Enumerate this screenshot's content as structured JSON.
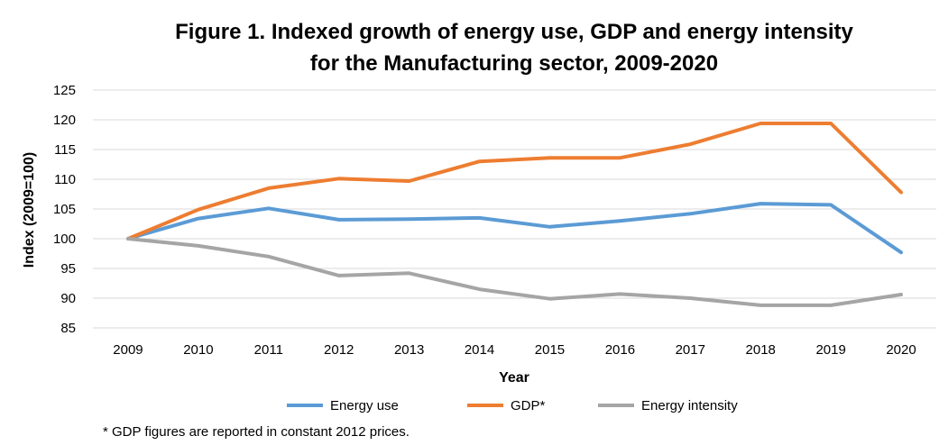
{
  "chart_data": {
    "type": "line",
    "title_line1": "Figure 1. Indexed growth of energy use, GDP and energy intensity",
    "title_line2": "for the Manufacturing sector, 2009-2020",
    "xlabel": "Year",
    "ylabel": "Index (2009=100)",
    "x": [
      "2009",
      "2010",
      "2011",
      "2012",
      "2013",
      "2014",
      "2015",
      "2016",
      "2017",
      "2018",
      "2019",
      "2020"
    ],
    "ylim": [
      85,
      125
    ],
    "yticks": [
      "85",
      "90",
      "95",
      "100",
      "105",
      "110",
      "115",
      "120",
      "125"
    ],
    "grid": true,
    "legend_position": "bottom",
    "series": [
      {
        "name": "Energy use",
        "color": "#5b9bd5",
        "values": [
          100,
          103.4,
          105.1,
          103.2,
          103.3,
          103.5,
          102.0,
          103.0,
          104.2,
          105.9,
          105.7,
          97.7
        ]
      },
      {
        "name": "GDP*",
        "color": "#ed7d31",
        "values": [
          100,
          104.9,
          108.5,
          110.1,
          109.7,
          113.0,
          113.6,
          113.6,
          115.9,
          119.4,
          119.4,
          107.8
        ]
      },
      {
        "name": "Energy intensity",
        "color": "#a5a5a5",
        "values": [
          100,
          98.8,
          97.0,
          93.8,
          94.2,
          91.5,
          89.9,
          90.7,
          90.0,
          88.8,
          88.8,
          90.6
        ]
      }
    ],
    "footnote": "* GDP figures are reported in constant 2012 prices."
  }
}
